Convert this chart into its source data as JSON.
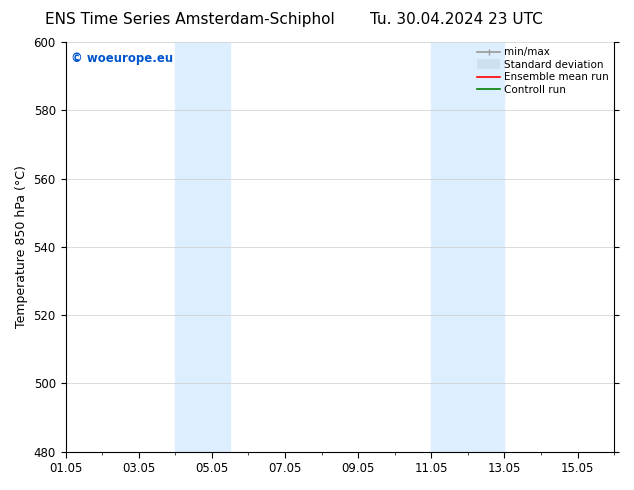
{
  "title_left": "ENS Time Series Amsterdam-Schiphol",
  "title_right": "Tu. 30.04.2024 23 UTC",
  "ylabel": "Temperature 850 hPa (°C)",
  "ylim": [
    480,
    600
  ],
  "yticks": [
    480,
    500,
    520,
    540,
    560,
    580,
    600
  ],
  "xtick_labels": [
    "01.05",
    "03.05",
    "05.05",
    "07.05",
    "09.05",
    "11.05",
    "13.05",
    "15.05"
  ],
  "xtick_days": [
    1,
    3,
    5,
    7,
    9,
    11,
    13,
    15
  ],
  "shaded_bands": [
    {
      "day_start": 4.0,
      "day_end": 5.5,
      "color": "#ddeeff"
    },
    {
      "day_start": 11.0,
      "day_end": 13.0,
      "color": "#ddeeff"
    }
  ],
  "background_color": "#ffffff",
  "plot_bg_color": "#ffffff",
  "watermark_text": "© woeurope.eu",
  "watermark_color": "#0055cc",
  "legend_items": [
    {
      "label": "min/max",
      "color": "#999999",
      "lw": 1.2
    },
    {
      "label": "Standard deviation",
      "color": "#cce0f0",
      "lw": 7
    },
    {
      "label": "Ensemble mean run",
      "color": "#ff0000",
      "lw": 1.2
    },
    {
      "label": "Controll run",
      "color": "#008000",
      "lw": 1.2
    }
  ],
  "grid_color": "#cccccc",
  "title_fontsize": 11,
  "axis_label_fontsize": 9,
  "tick_fontsize": 8.5,
  "legend_fontsize": 7.5
}
